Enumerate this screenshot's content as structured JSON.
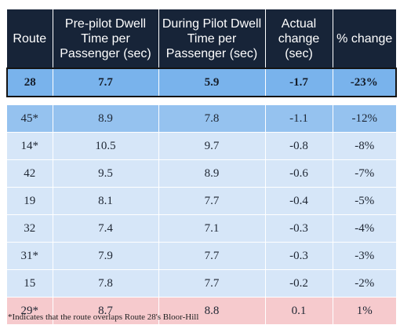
{
  "table": {
    "headers": [
      "Route",
      "Pre-pilot Dwell Time per Passenger (sec)",
      "During Pilot Dwell Time per Passenger (sec)",
      "Actual change (sec)",
      "% change"
    ],
    "rows": [
      {
        "route": "28",
        "pre": "7.7",
        "during": "5.9",
        "change": "-1.7",
        "pct": "-23%",
        "style": "hl"
      },
      {
        "route": "45*",
        "pre": "8.9",
        "during": "7.8",
        "change": "-1.1",
        "pct": "-12%",
        "style": "mid"
      },
      {
        "route": "14*",
        "pre": "10.5",
        "during": "9.7",
        "change": "-0.8",
        "pct": "-8%",
        "style": "light"
      },
      {
        "route": "42",
        "pre": "9.5",
        "during": "8.9",
        "change": "-0.6",
        "pct": "-7%",
        "style": "light"
      },
      {
        "route": "19",
        "pre": "8.1",
        "during": "7.7",
        "change": "-0.4",
        "pct": "-5%",
        "style": "light"
      },
      {
        "route": "32",
        "pre": "7.4",
        "during": "7.1",
        "change": "-0.3",
        "pct": "-4%",
        "style": "light"
      },
      {
        "route": "31*",
        "pre": "7.9",
        "during": "7.7",
        "change": "-0.3",
        "pct": "-3%",
        "style": "light"
      },
      {
        "route": "15",
        "pre": "7.8",
        "during": "7.7",
        "change": "-0.2",
        "pct": "-2%",
        "style": "light"
      },
      {
        "route": "29*",
        "pre": "8.7",
        "during": "8.8",
        "change": "0.1",
        "pct": "1%",
        "style": "neg"
      }
    ]
  },
  "colors": {
    "header_bg": "#172438",
    "highlight_row": "#79b3ec",
    "mid_row": "#95c2ef",
    "light_row": "#d6e6f8",
    "increase_row": "#f6cacd"
  },
  "footnote": "*Indicates that the route overlaps Route 28's Bloor-Hill"
}
